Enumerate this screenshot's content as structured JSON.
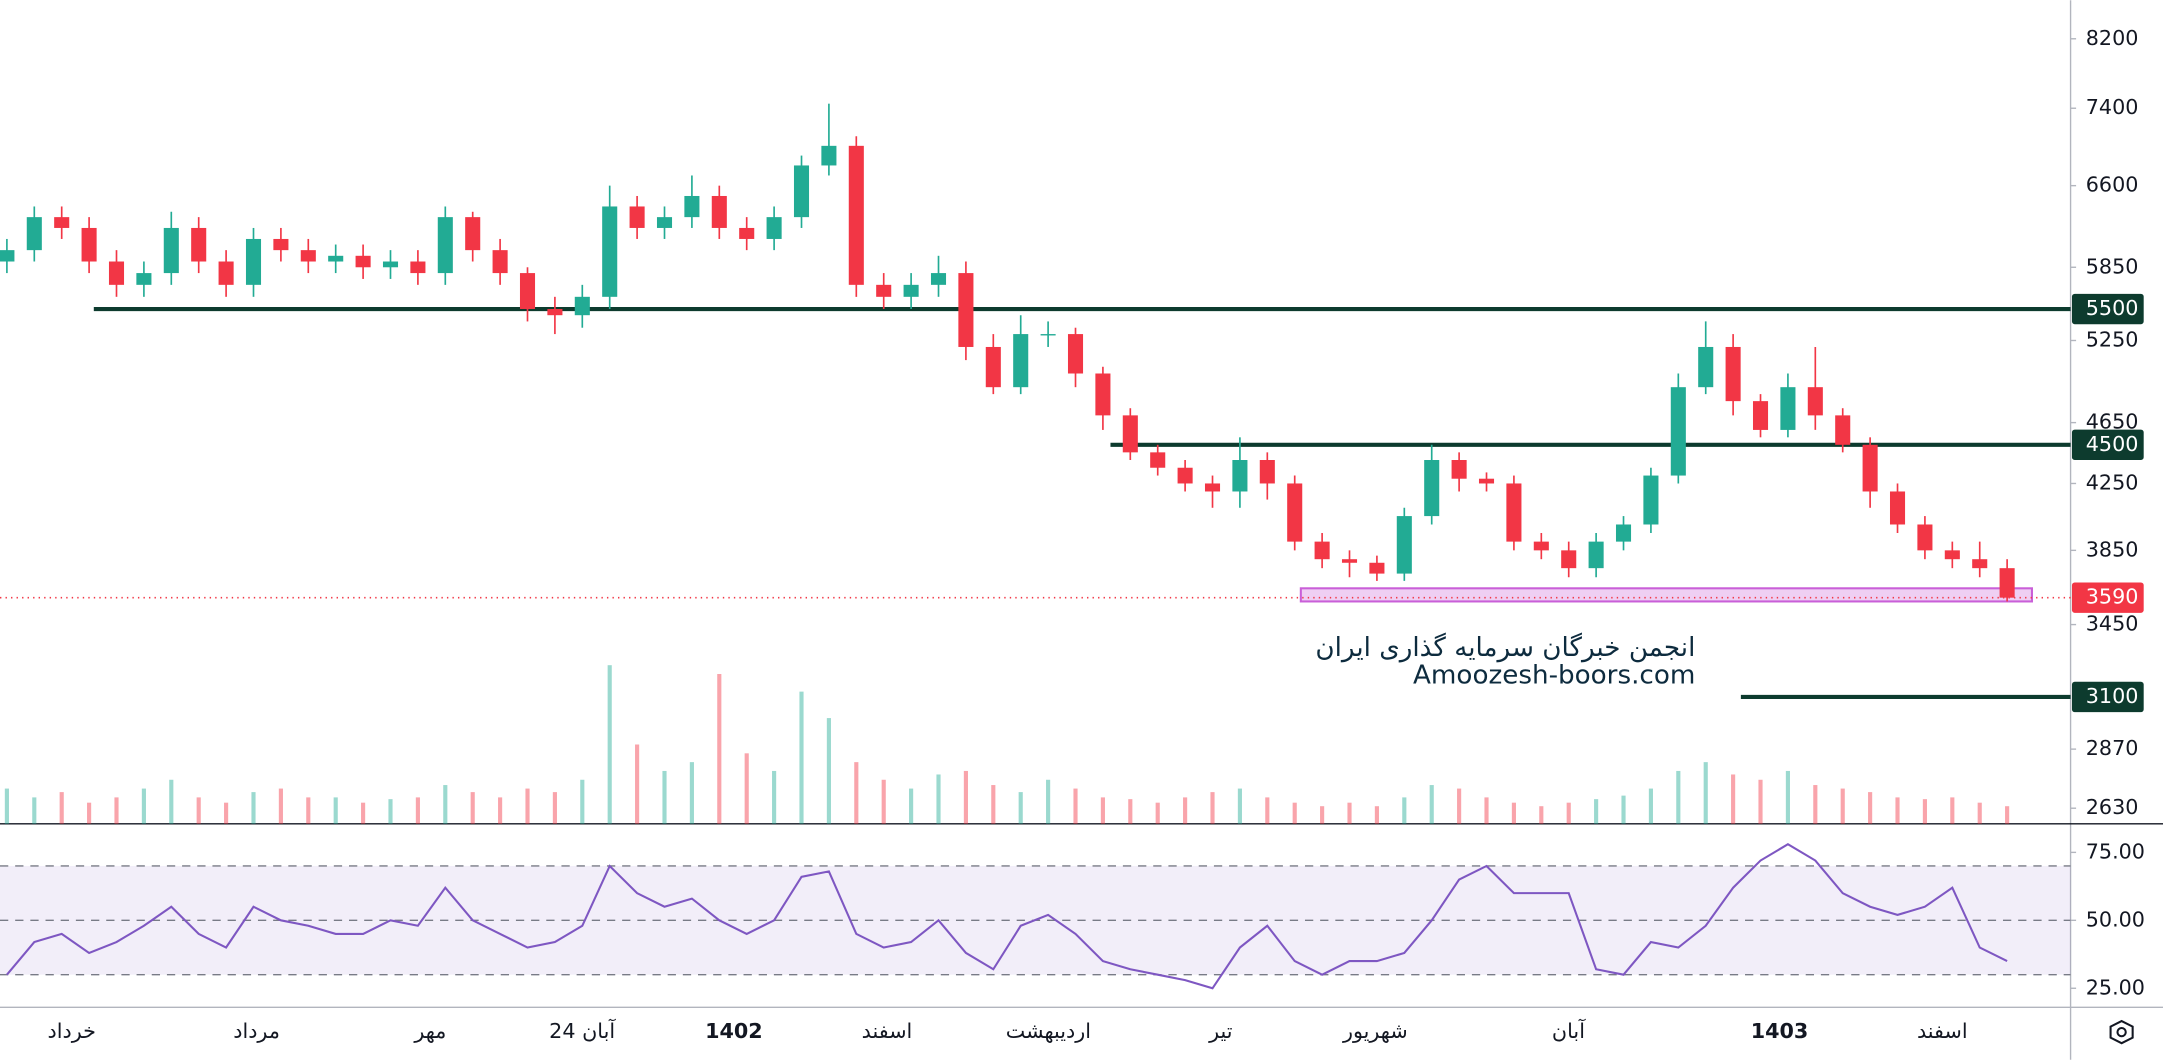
{
  "chart_data": {
    "type": "candlestick",
    "log_scale": true,
    "up_color": "#22ab94",
    "down_color": "#f23645",
    "open": [
      5900,
      6000,
      6300,
      6200,
      5900,
      5700,
      5800,
      6200,
      5900,
      5700,
      6100,
      6000,
      5900,
      5950,
      5850,
      5900,
      5800,
      6300,
      6000,
      5800,
      5500,
      5450,
      5600,
      6400,
      6200,
      6300,
      6500,
      6200,
      6100,
      6300,
      6800,
      7000,
      5700,
      5600,
      5700,
      5800,
      5200,
      4900,
      5300,
      5300,
      5000,
      4700,
      4450,
      4350,
      4250,
      4200,
      4400,
      4250,
      3900,
      3800,
      3780,
      3720,
      4050,
      4400,
      4280,
      4250,
      3900,
      3850,
      3750,
      3900,
      4000,
      4300,
      4900,
      5200,
      4800,
      4600,
      4900,
      4700,
      4500,
      4200,
      4000,
      3850,
      3800,
      3750
    ],
    "high": [
      6100,
      6400,
      6400,
      6300,
      6000,
      5900,
      6350,
      6300,
      6000,
      6200,
      6200,
      6100,
      6050,
      6050,
      6000,
      6000,
      6400,
      6350,
      6100,
      5850,
      5600,
      5700,
      6600,
      6500,
      6400,
      6700,
      6600,
      6300,
      6400,
      6900,
      7450,
      7100,
      5800,
      5800,
      5950,
      5900,
      5300,
      5450,
      5400,
      5350,
      5050,
      4750,
      4500,
      4400,
      4300,
      4550,
      4450,
      4300,
      3950,
      3850,
      3820,
      4100,
      4500,
      4450,
      4320,
      4300,
      3950,
      3900,
      3950,
      4050,
      4350,
      5000,
      5400,
      5300,
      4850,
      5000,
      5200,
      4750,
      4550,
      4250,
      4050,
      3900,
      3900,
      3800
    ],
    "low": [
      5800,
      5900,
      6100,
      5800,
      5600,
      5600,
      5700,
      5800,
      5600,
      5600,
      5900,
      5800,
      5800,
      5750,
      5750,
      5700,
      5700,
      5900,
      5700,
      5400,
      5300,
      5350,
      5500,
      6100,
      6100,
      6200,
      6100,
      6000,
      6000,
      6200,
      6700,
      5600,
      5500,
      5500,
      5600,
      5100,
      4850,
      4850,
      5200,
      4900,
      4600,
      4400,
      4300,
      4200,
      4100,
      4100,
      4150,
      3850,
      3750,
      3700,
      3680,
      3680,
      4000,
      4200,
      4200,
      3850,
      3800,
      3700,
      3700,
      3850,
      3950,
      4250,
      4850,
      4700,
      4550,
      4550,
      4600,
      4450,
      4100,
      3950,
      3800,
      3750,
      3700,
      3570
    ],
    "close": [
      6000,
      6300,
      6200,
      5900,
      5700,
      5800,
      6200,
      5900,
      5700,
      6100,
      6000,
      5900,
      5950,
      5850,
      5900,
      5800,
      6300,
      6000,
      5800,
      5500,
      5450,
      5600,
      6400,
      6200,
      6300,
      6500,
      6200,
      6100,
      6300,
      6800,
      7000,
      5700,
      5600,
      5700,
      5800,
      5200,
      4900,
      5300,
      5300,
      5000,
      4700,
      4450,
      4350,
      4250,
      4200,
      4400,
      4250,
      3900,
      3800,
      3780,
      3720,
      4050,
      4400,
      4280,
      4250,
      3900,
      3850,
      3750,
      3900,
      4000,
      4300,
      4900,
      5200,
      4800,
      4600,
      4900,
      4700,
      4500,
      4200,
      4000,
      3850,
      3800,
      3750,
      3590
    ],
    "volume": [
      20,
      15,
      18,
      12,
      15,
      20,
      25,
      15,
      12,
      18,
      20,
      15,
      15,
      12,
      14,
      15,
      22,
      18,
      15,
      20,
      18,
      25,
      90,
      45,
      30,
      35,
      85,
      40,
      30,
      75,
      60,
      35,
      25,
      20,
      28,
      30,
      22,
      18,
      25,
      20,
      15,
      14,
      12,
      15,
      18,
      20,
      15,
      12,
      10,
      12,
      10,
      15,
      22,
      20,
      15,
      12,
      10,
      12,
      14,
      16,
      20,
      30,
      35,
      28,
      25,
      30,
      22,
      20,
      18,
      15,
      14,
      15,
      12,
      10
    ],
    "rsi": [
      30,
      42,
      45,
      38,
      42,
      48,
      55,
      45,
      40,
      55,
      50,
      48,
      45,
      45,
      50,
      48,
      62,
      50,
      45,
      40,
      42,
      48,
      70,
      60,
      55,
      58,
      50,
      45,
      50,
      66,
      68,
      45,
      40,
      42,
      50,
      38,
      32,
      48,
      52,
      45,
      35,
      32,
      30,
      28,
      25,
      40,
      48,
      35,
      30,
      35,
      35,
      38,
      50,
      65,
      70,
      60,
      60,
      60,
      32,
      30,
      42,
      40,
      48,
      62,
      72,
      78,
      72,
      60,
      55,
      52,
      55,
      62,
      40,
      35
    ],
    "rsi_color": "#7e57c2",
    "ylim": [
      8680,
      2570
    ],
    "yticks": [
      8200,
      7400,
      6600,
      5850,
      5250,
      4650,
      4250,
      3850,
      3450,
      2870,
      2630
    ],
    "rsi_ylim": [
      18,
      85
    ],
    "rsi_yticks": [
      {
        "value": 75,
        "label": "75.00"
      },
      {
        "value": 50,
        "label": "50.00"
      },
      {
        "value": 25,
        "label": "25.00"
      }
    ],
    "rsi_levels": [
      70,
      50,
      30
    ],
    "levels": [
      {
        "value": 5500,
        "color": "#0d3b2e"
      },
      {
        "value": 4500,
        "color": "#0d3b2e"
      },
      {
        "value": 3100,
        "color": "#0d3b2e"
      }
    ],
    "last_price": 3590,
    "zone": [
      3570,
      3640
    ],
    "zone_color": "#c95fd8",
    "x_labels": [
      "خرداد",
      "مرداد",
      "مهر",
      "24 آبان",
      "1402",
      "اسفند",
      "اردیبهشت",
      "تیر",
      "شهریور",
      "آبان",
      "1403",
      "اسفند"
    ],
    "annotations": [
      "انجمن خبرگان سرمایه گذاری ایران",
      "Amoozesh-boors.com"
    ]
  }
}
